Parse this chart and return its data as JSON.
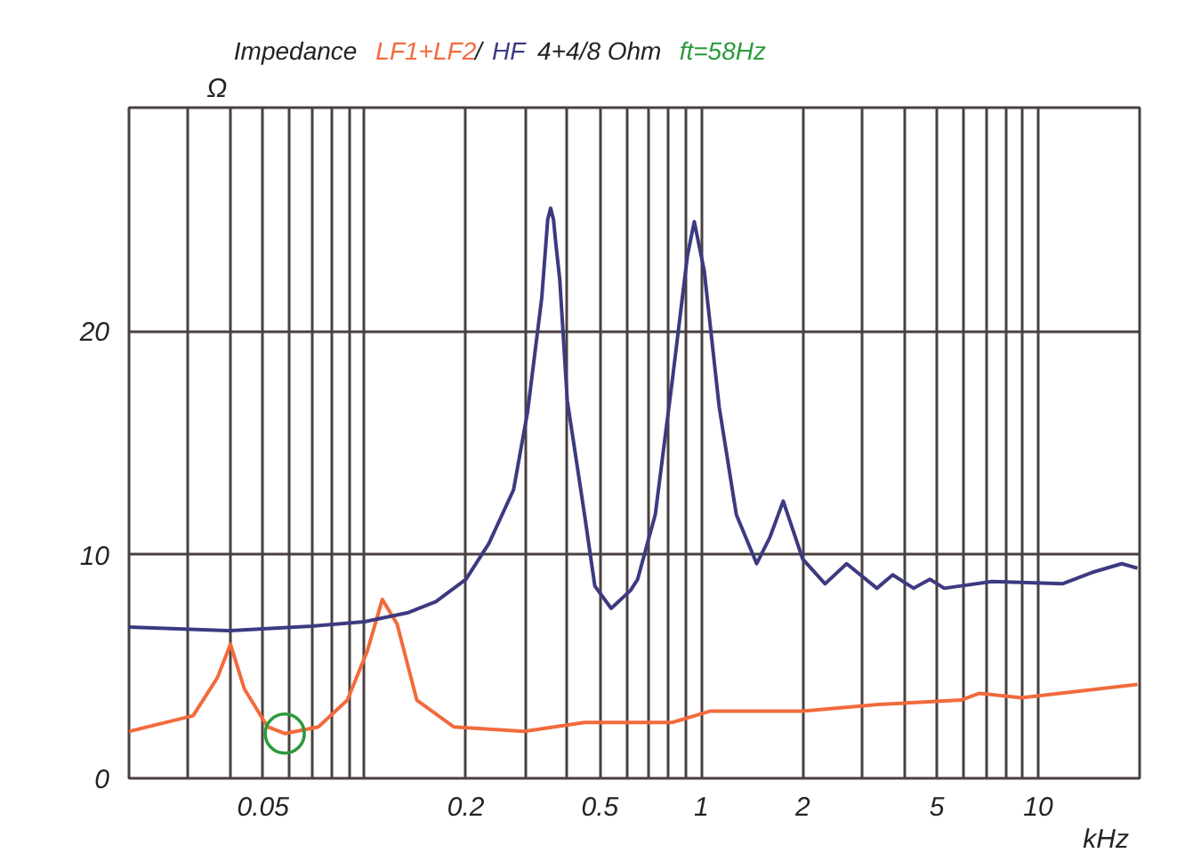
{
  "chart_data": {
    "type": "line",
    "title": "Impedance",
    "xlabel": "kHz",
    "ylabel": "Ω",
    "annotations": [
      "/",
      "4+4/8 Ohm",
      "ft=58Hz"
    ],
    "log": "x",
    "grid": true,
    "xlim": [
      0.02,
      20
    ],
    "ylim": [
      0,
      30
    ],
    "xticks": [
      {
        "value": 0.03,
        "label": null
      },
      {
        "value": 0.04,
        "label": null
      },
      0.05,
      {
        "value": 0.06,
        "label": null
      },
      {
        "value": 0.07,
        "label": null
      },
      {
        "value": 0.08,
        "label": null
      },
      {
        "value": 0.09,
        "label": null
      },
      {
        "value": 0.1,
        "label": null
      },
      0.2,
      {
        "value": 0.3,
        "label": null
      },
      {
        "value": 0.4,
        "label": null
      },
      0.5,
      {
        "value": 0.6,
        "label": null
      },
      {
        "value": 0.7,
        "label": null
      },
      {
        "value": 0.8,
        "label": null
      },
      {
        "value": 0.9,
        "label": null
      },
      1,
      2,
      {
        "value": 3,
        "label": null
      },
      {
        "value": 4,
        "label": null
      },
      5,
      {
        "value": 6,
        "label": null
      },
      {
        "value": 7,
        "label": null
      },
      {
        "value": 8,
        "label": null
      },
      {
        "value": 9,
        "label": null
      },
      10
    ],
    "yticks": [
      0,
      10,
      20
    ],
    "series": [
      {
        "name": "LF1+LF2",
        "color": "#f26a3c",
        "x": [
          0.02,
          0.031,
          0.0366,
          0.04,
          0.044,
          0.0516,
          0.058,
          0.073,
          0.089,
          0.102,
          0.113,
          0.125,
          0.143,
          0.184,
          0.298,
          0.45,
          0.526,
          0.82,
          1.06,
          2.0,
          3.36,
          5.9,
          6.7,
          8.9,
          19.7
        ],
        "values": [
          2.1,
          2.8,
          4.5,
          6.0,
          4.0,
          2.3,
          2.0,
          2.3,
          3.5,
          5.7,
          8.0,
          6.9,
          3.5,
          2.3,
          2.1,
          2.5,
          2.5,
          2.5,
          3.0,
          3.0,
          3.3,
          3.5,
          3.8,
          3.6,
          4.2
        ]
      },
      {
        "name": "HF",
        "color": "#3c3a80",
        "x": [
          0.02,
          0.04,
          0.0696,
          0.1,
          0.134,
          0.163,
          0.2,
          0.234,
          0.277,
          0.305,
          0.336,
          0.35,
          0.357,
          0.364,
          0.37,
          0.38,
          0.4,
          0.45,
          0.483,
          0.54,
          0.616,
          0.647,
          0.73,
          0.82,
          0.91,
          0.953,
          1.02,
          1.13,
          1.27,
          1.46,
          1.6,
          1.75,
          2.0,
          2.33,
          2.7,
          3.32,
          3.7,
          4.27,
          4.77,
          5.26,
          7.3,
          11.8,
          14.4,
          17.7,
          19.7
        ],
        "values": [
          6.76,
          6.6,
          6.8,
          7.0,
          7.4,
          7.9,
          8.9,
          10.5,
          12.9,
          16.4,
          21.5,
          25.0,
          25.5,
          25.0,
          23.9,
          22.3,
          16.9,
          11.8,
          8.6,
          7.6,
          8.4,
          8.9,
          11.8,
          17.8,
          23.4,
          24.9,
          22.7,
          16.6,
          11.8,
          9.6,
          10.8,
          12.4,
          9.8,
          8.7,
          9.6,
          8.5,
          9.1,
          8.5,
          8.9,
          8.5,
          8.8,
          8.7,
          9.2,
          9.6,
          9.4
        ]
      },
      {
        "type": "scatter",
        "color": "#2a9a3a",
        "marker": "circle",
        "x": [
          0.058
        ],
        "values": [
          2.0
        ]
      }
    ]
  }
}
